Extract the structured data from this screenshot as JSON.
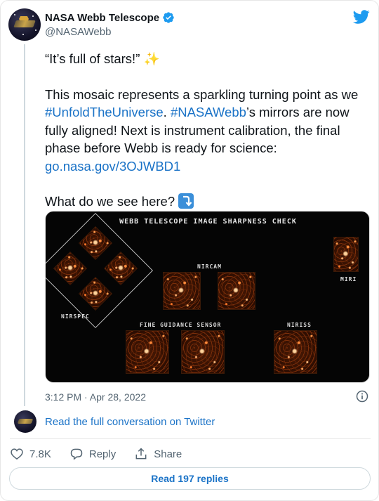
{
  "author": {
    "display_name": "NASA Webb Telescope",
    "handle": "@NASAWebb",
    "verified": true
  },
  "tweet": {
    "line1": "“It’s full of stars!”",
    "line1_emoji": "✨",
    "p2_a": "This mosaic represents a sparkling turning point as we ",
    "p2_hashtag1": "#UnfoldTheUniverse",
    "p2_b": ". ",
    "p2_hashtag2": "#NASAWebb",
    "p2_c": "’s mirrors are now fully aligned! Next is instrument calibration, the final phase before Webb is ready for science: ",
    "p2_link": "go.nasa.gov/3OJWBD1",
    "p3": "What do we see here?"
  },
  "media": {
    "title": "WEBB TELESCOPE IMAGE SHARPNESS CHECK",
    "labels": {
      "nircam": "NIRCAM",
      "miri": "MIRI",
      "nirspec": "NIRSPEC",
      "fgs": "FINE GUIDANCE SENSOR",
      "niriss": "NIRISS"
    }
  },
  "timestamp": "3:12 PM · Apr 28, 2022",
  "read_conversation": "Read the full conversation on Twitter",
  "actions": {
    "likes": "7.8K",
    "reply": "Reply",
    "share": "Share"
  },
  "read_replies": "Read 197 replies",
  "colors": {
    "link": "#1b73c7",
    "twitter_blue": "#1d9bf0",
    "secondary_text": "#536471"
  }
}
